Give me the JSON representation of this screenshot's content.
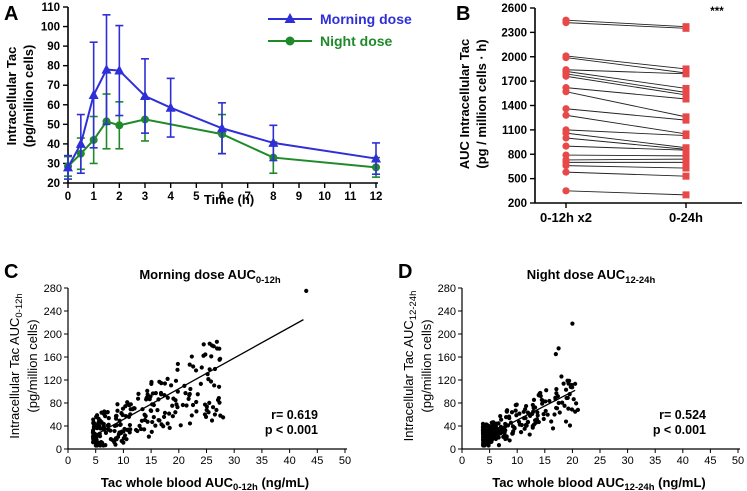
{
  "figure": {
    "panel_labels": [
      "A",
      "B",
      "C",
      "D"
    ],
    "colors": {
      "morning": "#2f2fd8",
      "night": "#1f8a2a",
      "paired": "#e84848",
      "points": "#000000"
    }
  },
  "chart_data": [
    {
      "id": "A",
      "type": "line",
      "xlabel": "Time (h)",
      "ylabel": [
        "Intracellular Tac",
        "(pg/million cells)"
      ],
      "xlim": [
        0,
        12
      ],
      "ylim": [
        20,
        110
      ],
      "xticks": [
        0,
        1,
        2,
        3,
        4,
        5,
        6,
        7,
        8,
        9,
        10,
        11,
        12
      ],
      "yticks": [
        20,
        30,
        40,
        50,
        60,
        70,
        80,
        90,
        100,
        110
      ],
      "series": [
        {
          "name": "Morning dose",
          "marker": "triangle",
          "x": [
            0,
            0.5,
            1,
            1.5,
            2,
            3,
            4,
            6,
            8,
            12
          ],
          "y": [
            28,
            40,
            65,
            78,
            77.5,
            64.5,
            58.5,
            48,
            40.5,
            32.5
          ],
          "err": [
            6,
            15,
            27,
            28,
            23,
            19,
            15,
            13,
            9,
            8
          ]
        },
        {
          "name": "Night dose",
          "marker": "circle",
          "x": [
            0,
            0.5,
            1,
            1.5,
            2,
            3,
            6,
            8,
            12
          ],
          "y": [
            28.5,
            35,
            42,
            51.5,
            49.5,
            52.5,
            45,
            33,
            28
          ],
          "err": [
            5,
            8,
            12,
            14,
            12,
            11,
            10,
            8,
            5
          ]
        }
      ]
    },
    {
      "id": "B",
      "type": "paired",
      "ylabel": [
        "AUC Intracellular Tac",
        "(pg / million cells · h)"
      ],
      "categories": [
        "0-12h x2",
        "0-24h"
      ],
      "ylim": [
        200,
        2600
      ],
      "yticks": [
        200,
        500,
        800,
        1100,
        1400,
        1700,
        2000,
        2300,
        2600
      ],
      "annotation": "***",
      "pairs": [
        [
          2450,
          2370
        ],
        [
          2420,
          2350
        ],
        [
          2010,
          1850
        ],
        [
          1990,
          1800
        ],
        [
          1840,
          1790
        ],
        [
          1820,
          1610
        ],
        [
          1790,
          1560
        ],
        [
          1760,
          1530
        ],
        [
          1620,
          1480
        ],
        [
          1570,
          1260
        ],
        [
          1360,
          1220
        ],
        [
          1280,
          1050
        ],
        [
          1100,
          1030
        ],
        [
          1060,
          880
        ],
        [
          1000,
          860
        ],
        [
          900,
          850
        ],
        [
          790,
          780
        ],
        [
          730,
          740
        ],
        [
          700,
          700
        ],
        [
          660,
          630
        ],
        [
          580,
          530
        ],
        [
          350,
          300
        ]
      ]
    },
    {
      "id": "C",
      "type": "scatter",
      "title": "Morning dose AUC",
      "title_sub": "0-12h",
      "xlabel": "Tac whole blood AUC",
      "xlabel_sub": "0-12h",
      "xlabel_unit": " (ng/mL)",
      "ylabel_main": "Intracellular Tac AUC",
      "ylabel_sub": "0-12h",
      "ylabel_unit": "(pg/million cells)",
      "xlim": [
        0,
        50
      ],
      "ylim": [
        0,
        280
      ],
      "xticks": [
        0,
        5,
        10,
        15,
        20,
        25,
        30,
        35,
        40,
        45,
        50
      ],
      "yticks": [
        0,
        40,
        80,
        120,
        160,
        200,
        240,
        280
      ],
      "regression": {
        "x": [
          4.5,
          42.5
        ],
        "y": [
          22,
          225
        ]
      },
      "r_text": "r= 0.619",
      "p_text": "p < 0.001"
    },
    {
      "id": "D",
      "type": "scatter",
      "title": "Night dose AUC",
      "title_sub": "12-24h",
      "xlabel": "Tac whole blood AUC",
      "xlabel_sub": "12-24h",
      "xlabel_unit": " (ng/mL)",
      "ylabel_main": "Intracellular Tac AUC",
      "ylabel_sub": "12-24h",
      "ylabel_unit": "(pg/million cells)",
      "xlim": [
        0,
        50
      ],
      "ylim": [
        0,
        280
      ],
      "xticks": [
        0,
        5,
        10,
        15,
        20,
        25,
        30,
        35,
        40,
        45,
        50
      ],
      "yticks": [
        0,
        40,
        80,
        120,
        160,
        200,
        240,
        280
      ],
      "regression": {
        "x": [
          3.5,
          20.5
        ],
        "y": [
          18,
          102
        ]
      },
      "r_text": "r= 0.524",
      "p_text": "p < 0.001"
    }
  ]
}
